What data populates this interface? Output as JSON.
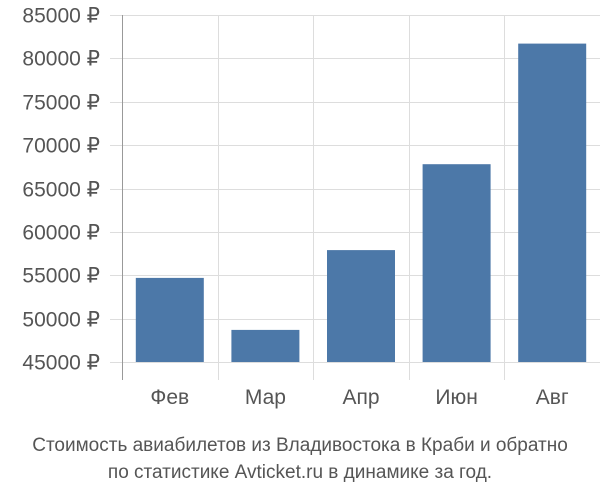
{
  "chart_data": {
    "type": "bar",
    "categories": [
      "Фев",
      "Мар",
      "Апр",
      "Июн",
      "Авг"
    ],
    "values": [
      54700,
      48700,
      57900,
      67800,
      81700
    ],
    "ylim": [
      45000,
      85000
    ],
    "yticks": [
      45000,
      50000,
      55000,
      60000,
      65000,
      70000,
      75000,
      80000,
      85000
    ],
    "ytick_labels": [
      "45000 ₽",
      "50000 ₽",
      "55000 ₽",
      "60000 ₽",
      "65000 ₽",
      "70000 ₽",
      "75000 ₽",
      "80000 ₽",
      "85000 ₽"
    ],
    "grid": true,
    "bar_color": "#4c78a8",
    "grid_color": "#dddddd",
    "axis_color": "#999999",
    "text_color": "#555555"
  },
  "caption": {
    "line1": "Стоимость авиабилетов из Владивостока в Краби и обратно",
    "line2": "по статистике Avticket.ru в динамике за год."
  }
}
